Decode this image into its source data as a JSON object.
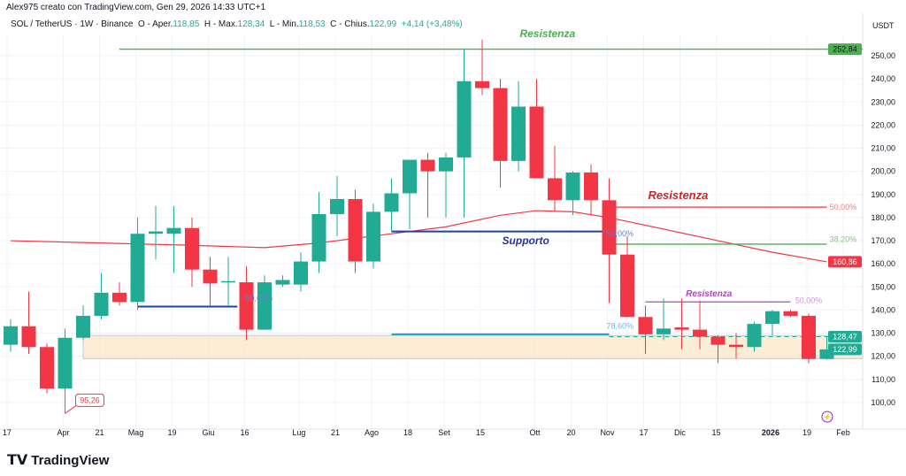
{
  "header": {
    "credit": "Alex975 creato con TradingView.com, Gen 29, 2026 14:33 UTC+1",
    "symbol": "SOL / TetherUS · 1W · Binance",
    "o_label": "O - Aper.",
    "o": "118,85",
    "h_label": "H - Max.",
    "h": "128,34",
    "l_label": "L - Min.",
    "l": "118,53",
    "c_label": "C - Chius.",
    "c": "122,99",
    "change": "+4,14 (+3,48%)"
  },
  "axis": {
    "unit": "USDT",
    "ticks": [
      100,
      110,
      120,
      130,
      140,
      150,
      160,
      170,
      180,
      190,
      200,
      210,
      220,
      230,
      240,
      250
    ],
    "badges": [
      {
        "text": "252,84",
        "value": 252.84,
        "color": "#4caf50"
      },
      {
        "text": "160,86",
        "value": 160.86,
        "color": "#f23645"
      },
      {
        "text": "128,47",
        "value": 128.47,
        "color": "#22ab94"
      },
      {
        "text": "122,99",
        "value": 122.99,
        "color": "#22ab94"
      }
    ]
  },
  "time_labels": [
    {
      "t": "17",
      "i": -0.2
    },
    {
      "t": "Apr",
      "i": 2.9
    },
    {
      "t": "21",
      "i": 4.9
    },
    {
      "t": "Mag",
      "i": 6.9
    },
    {
      "t": "19",
      "i": 8.9
    },
    {
      "t": "Giu",
      "i": 10.9
    },
    {
      "t": "16",
      "i": 12.9
    },
    {
      "t": "Lug",
      "i": 15.9
    },
    {
      "t": "21",
      "i": 17.9
    },
    {
      "t": "Ago",
      "i": 19.9
    },
    {
      "t": "18",
      "i": 21.9
    },
    {
      "t": "Set",
      "i": 23.9
    },
    {
      "t": "15",
      "i": 25.9
    },
    {
      "t": "Ott",
      "i": 28.9
    },
    {
      "t": "20",
      "i": 30.9
    },
    {
      "t": "Nov",
      "i": 32.9
    },
    {
      "t": "17",
      "i": 34.9
    },
    {
      "t": "Dic",
      "i": 36.9
    },
    {
      "t": "15",
      "i": 38.9
    },
    {
      "t": "2026",
      "i": 41.9,
      "bold": true
    },
    {
      "t": "19",
      "i": 43.9
    },
    {
      "t": "Feb",
      "i": 45.9
    }
  ],
  "colors": {
    "up": "#22ab94",
    "down": "#f23645",
    "ma": "#f23645"
  },
  "chart_data": {
    "type": "candlestick",
    "ohlc": [
      [
        125,
        136,
        122,
        133
      ],
      [
        133,
        148,
        121,
        124
      ],
      [
        124,
        125.5,
        104,
        106
      ],
      [
        106,
        132,
        95.26,
        128
      ],
      [
        128,
        142,
        127,
        137.5
      ],
      [
        137.5,
        156,
        136,
        147.5
      ],
      [
        147.5,
        152,
        142,
        143.5
      ],
      [
        143.5,
        180,
        140,
        173
      ],
      [
        173,
        185,
        162,
        174
      ],
      [
        173,
        185,
        156,
        175.5
      ],
      [
        175.5,
        180,
        150,
        157.5
      ],
      [
        157.5,
        163,
        142,
        151.5
      ],
      [
        152.5,
        163,
        142,
        152.5
      ],
      [
        152,
        159,
        127,
        131.5
      ],
      [
        131.5,
        155,
        131.5,
        152
      ],
      [
        151,
        155,
        150,
        153
      ],
      [
        151,
        165,
        148,
        161
      ],
      [
        161,
        191,
        156,
        181.5
      ],
      [
        181.5,
        198,
        172,
        188
      ],
      [
        188,
        192,
        156,
        161
      ],
      [
        161,
        186,
        158,
        182.5
      ],
      [
        182.5,
        197,
        174,
        190.5
      ],
      [
        190.5,
        204,
        175,
        205
      ],
      [
        205,
        208,
        180,
        200
      ],
      [
        200,
        208,
        180,
        206
      ],
      [
        206,
        253,
        180,
        239
      ],
      [
        239,
        257,
        233,
        236
      ],
      [
        236,
        240,
        193,
        204.5
      ],
      [
        204.5,
        239,
        200,
        228
      ],
      [
        228,
        240,
        197,
        197
      ],
      [
        197,
        211,
        183,
        187.5
      ],
      [
        187.5,
        200,
        181,
        199.5
      ],
      [
        199.5,
        203,
        181,
        187.5
      ],
      [
        187.5,
        197,
        143,
        164
      ],
      [
        164,
        172,
        138,
        137
      ],
      [
        137,
        142,
        121,
        129.5
      ],
      [
        129.5,
        145,
        127,
        132
      ],
      [
        132.5,
        145,
        123,
        131.5
      ],
      [
        131.5,
        144,
        123,
        128.5
      ],
      [
        128.5,
        129,
        117,
        125
      ],
      [
        125,
        130,
        119,
        124
      ],
      [
        124,
        135,
        122,
        134
      ],
      [
        134,
        140,
        129,
        139.5
      ],
      [
        139.5,
        140,
        137,
        137.5
      ],
      [
        137.5,
        138.5,
        117,
        118.85
      ],
      [
        118.85,
        128.34,
        118.53,
        122.99
      ]
    ],
    "ma": [
      [
        0,
        170
      ],
      [
        5,
        169
      ],
      [
        10,
        168
      ],
      [
        14,
        167
      ],
      [
        17,
        169
      ],
      [
        20,
        172
      ],
      [
        24,
        176
      ],
      [
        27,
        181
      ],
      [
        29,
        183
      ],
      [
        31,
        182.5
      ],
      [
        33,
        180
      ],
      [
        36,
        175
      ],
      [
        39,
        170
      ],
      [
        42,
        165
      ],
      [
        45,
        160.86
      ]
    ]
  },
  "annotations": [
    {
      "text": "Resistenza",
      "price": 258,
      "i": 29.6,
      "color": "#4caf50",
      "size": 12
    },
    {
      "text": "Resistenza",
      "price": 188,
      "i": 36.8,
      "color": "#c62828",
      "size": 13,
      "bold": true
    },
    {
      "text": "Supporto",
      "price": 168.5,
      "i": 28.4,
      "color": "#283593",
      "size": 12
    },
    {
      "text": "Resistenza",
      "price": 146,
      "i": 38.5,
      "color": "#ab47bc",
      "size": 10
    },
    {
      "text": "50,00%",
      "price": 183.5,
      "i": 45.9,
      "color": "#f77c80",
      "size": 9
    },
    {
      "text": "38,20%",
      "price": 169.5,
      "i": 45.9,
      "color": "#81c784",
      "size": 9
    },
    {
      "text": "50,00%",
      "price": 172,
      "i": 33.6,
      "color": "#5b7fd6",
      "size": 9
    },
    {
      "text": "50,00%",
      "price": 143,
      "i": 44,
      "color": "#ce93d8",
      "size": 9
    },
    {
      "text": "50,00%",
      "price": 144,
      "i": 13.7,
      "color": "#5b7fd6",
      "size": 9
    },
    {
      "text": "78,60%",
      "price": 132,
      "i": 33.6,
      "color": "#64b5f6",
      "size": 9
    }
  ],
  "low_label": "95,26",
  "lines": [
    {
      "p": 252.84,
      "a": 6,
      "b": 47.6,
      "c": "#4caf50"
    },
    {
      "p": 184.5,
      "a": 33,
      "b": 45,
      "c": "#f23645"
    },
    {
      "p": 168.5,
      "a": 33,
      "b": 45,
      "c": "#4caf50"
    },
    {
      "p": 174,
      "a": 21,
      "b": 33,
      "c": "#1e40af",
      "w": 2
    },
    {
      "p": 143.5,
      "a": 35,
      "b": 43,
      "c": "#ab47bc"
    },
    {
      "p": 141.5,
      "a": 7,
      "b": 12.5,
      "c": "#1e40af",
      "w": 2
    },
    {
      "p": 129.5,
      "a": 21,
      "b": 33,
      "c": "#26a0b4",
      "w": 2
    }
  ],
  "logo": "TradingView"
}
